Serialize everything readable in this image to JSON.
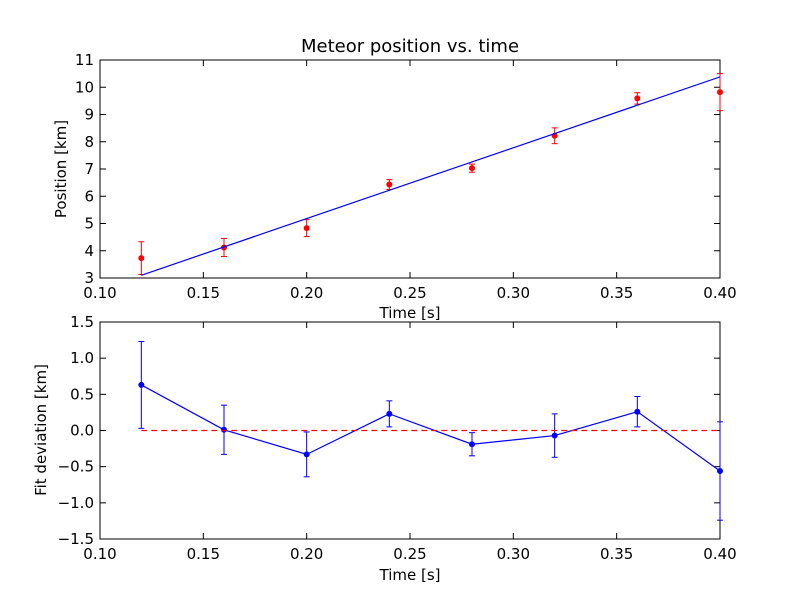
{
  "chart_data": [
    {
      "type": "scatter",
      "title": "Meteor position vs. time",
      "xlabel": "Time [s]",
      "ylabel": "Position [km]",
      "xlim": [
        0.1,
        0.4
      ],
      "ylim": [
        3,
        11
      ],
      "xticks": [
        "0.10",
        "0.15",
        "0.20",
        "0.25",
        "0.30",
        "0.35",
        "0.40"
      ],
      "yticks": [
        "3",
        "4",
        "5",
        "6",
        "7",
        "8",
        "9",
        "10",
        "11"
      ],
      "grid": false,
      "series": [
        {
          "kind": "errorbar",
          "color": "#ff0000",
          "x": [
            0.12,
            0.16,
            0.2,
            0.24,
            0.28,
            0.32,
            0.36,
            0.4
          ],
          "y": [
            3.73,
            4.12,
            4.83,
            6.43,
            7.03,
            8.22,
            9.59,
            9.82
          ],
          "err": [
            0.6,
            0.33,
            0.31,
            0.18,
            0.15,
            0.29,
            0.21,
            0.68
          ]
        },
        {
          "kind": "fit-line",
          "color": "#0000ff",
          "x": [
            0.12,
            0.4
          ],
          "y": [
            3.1,
            10.38
          ]
        }
      ]
    },
    {
      "type": "line",
      "title": "",
      "xlabel": "Time [s]",
      "ylabel": "Fit deviation [km]",
      "xlim": [
        0.1,
        0.4
      ],
      "ylim": [
        -1.5,
        1.5
      ],
      "xticks": [
        "0.10",
        "0.15",
        "0.20",
        "0.25",
        "0.30",
        "0.35",
        "0.40"
      ],
      "yticks": [
        "1.5",
        "1.0",
        "0.5",
        "0.0",
        "−0.5",
        "−1.0",
        "−1.5"
      ],
      "grid": false,
      "series": [
        {
          "kind": "errorbar-line",
          "color": "#0000ff",
          "x": [
            0.12,
            0.16,
            0.2,
            0.24,
            0.28,
            0.32,
            0.36,
            0.4
          ],
          "y": [
            0.63,
            0.01,
            -0.33,
            0.23,
            -0.19,
            -0.07,
            0.26,
            -0.56
          ],
          "err": [
            0.6,
            0.34,
            0.31,
            0.18,
            0.16,
            0.3,
            0.21,
            0.68
          ]
        },
        {
          "kind": "reference-line",
          "color": "#ff0000",
          "style": "dashed",
          "x": [
            0.12,
            0.4
          ],
          "y": [
            0.0,
            0.0
          ]
        }
      ]
    }
  ]
}
